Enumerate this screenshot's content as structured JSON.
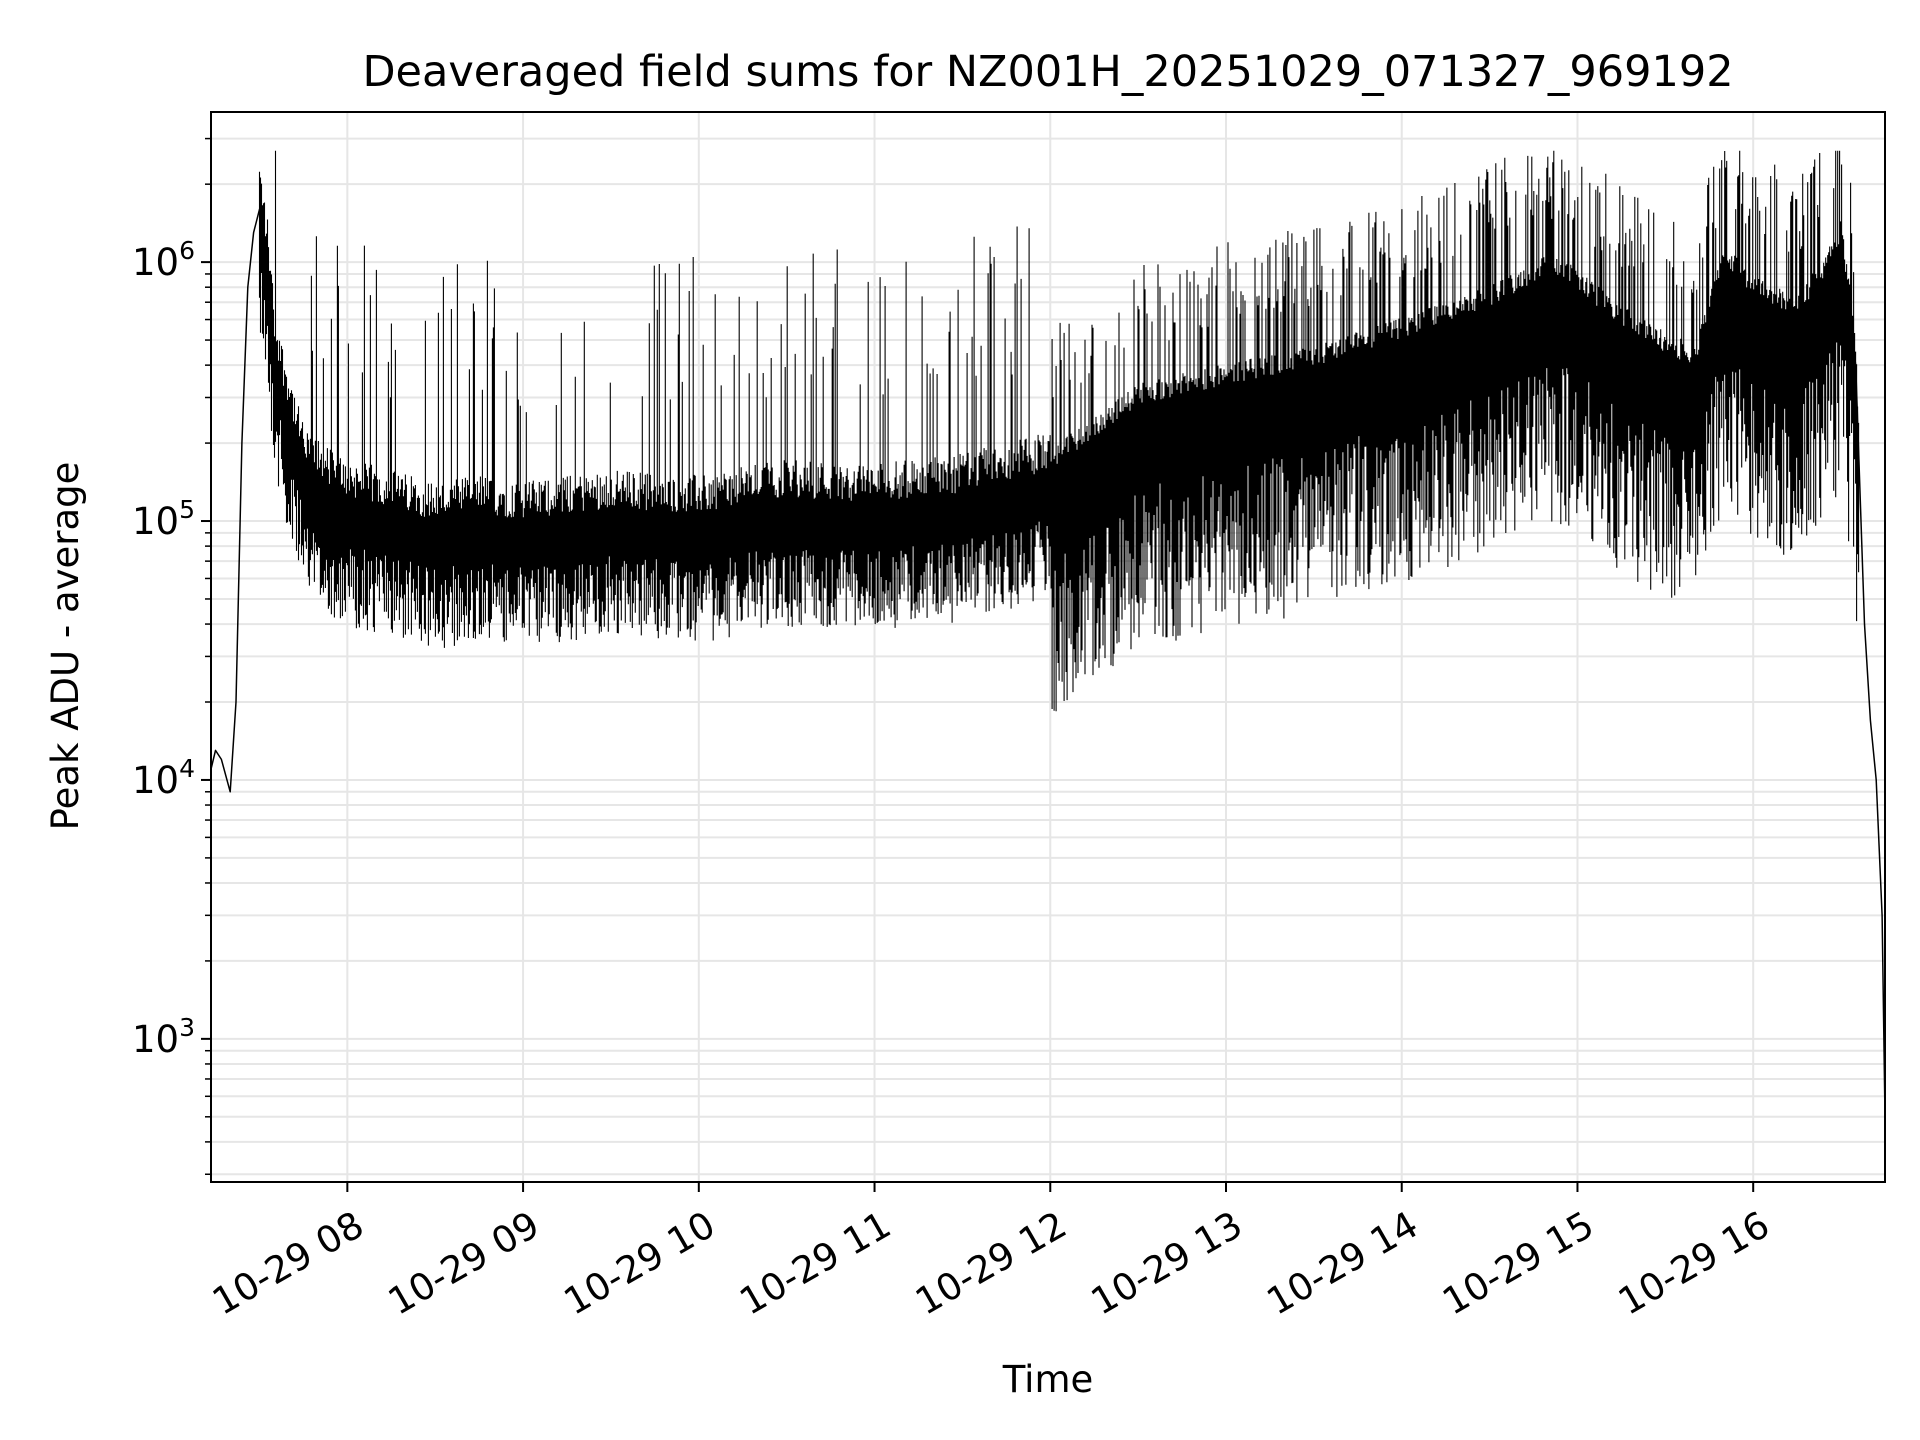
{
  "chart_data": {
    "type": "line",
    "title": "Deaveraged field sums for NZ001H_20251029_071327_969192",
    "xlabel": "Time",
    "ylabel": "Peak ADU - average",
    "yscale": "log",
    "ylim": [
      280,
      3800000
    ],
    "xlim": [
      "2025-10-29 07:13:27",
      "2025-10-29 16:45:00"
    ],
    "grid": true,
    "line_color": "#000000",
    "grid_color": "#e6e6e6",
    "x_ticks": [
      {
        "value": "2025-10-29 08:00",
        "label": "10-29 08"
      },
      {
        "value": "2025-10-29 09:00",
        "label": "10-29 09"
      },
      {
        "value": "2025-10-29 10:00",
        "label": "10-29 10"
      },
      {
        "value": "2025-10-29 11:00",
        "label": "10-29 11"
      },
      {
        "value": "2025-10-29 12:00",
        "label": "10-29 12"
      },
      {
        "value": "2025-10-29 13:00",
        "label": "10-29 13"
      },
      {
        "value": "2025-10-29 14:00",
        "label": "10-29 14"
      },
      {
        "value": "2025-10-29 15:00",
        "label": "10-29 15"
      },
      {
        "value": "2025-10-29 16:00",
        "label": "10-29 16"
      }
    ],
    "y_ticks": [
      {
        "value": 1000,
        "base": "10",
        "exp": "3"
      },
      {
        "value": 10000,
        "base": "10",
        "exp": "4"
      },
      {
        "value": 100000,
        "base": "10",
        "exp": "5"
      },
      {
        "value": 1000000,
        "base": "10",
        "exp": "6"
      }
    ],
    "series": [
      {
        "x": [
          "2025-10-29 07:13:27",
          "2025-10-29 07:15",
          "2025-10-29 07:17",
          "2025-10-29 07:20",
          "2025-10-29 07:22",
          "2025-10-29 07:24",
          "2025-10-29 07:26",
          "2025-10-29 07:28",
          "2025-10-29 07:30",
          "2025-10-29 07:33",
          "2025-10-29 07:35",
          "2025-10-29 07:38",
          "2025-10-29 07:40",
          "2025-10-29 07:43",
          "2025-10-29 07:46",
          "2025-10-29 07:50",
          "2025-10-29 07:55",
          "2025-10-29 08:00",
          "2025-10-29 08:15",
          "2025-10-29 08:30",
          "2025-10-29 08:45",
          "2025-10-29 09:00",
          "2025-10-29 09:30",
          "2025-10-29 10:00",
          "2025-10-29 10:30",
          "2025-10-29 11:00",
          "2025-10-29 11:30",
          "2025-10-29 12:00",
          "2025-10-29 12:30",
          "2025-10-29 13:00",
          "2025-10-29 13:30",
          "2025-10-29 14:00",
          "2025-10-29 14:30",
          "2025-10-29 14:50",
          "2025-10-29 15:00",
          "2025-10-29 15:15",
          "2025-10-29 15:30",
          "2025-10-29 15:40",
          "2025-10-29 15:50",
          "2025-10-29 16:00",
          "2025-10-29 16:15",
          "2025-10-29 16:25",
          "2025-10-29 16:30",
          "2025-10-29 16:35",
          "2025-10-29 16:38",
          "2025-10-29 16:40",
          "2025-10-29 16:42",
          "2025-10-29 16:44",
          "2025-10-29 16:45"
        ],
        "values": [
          11000,
          13000,
          12000,
          9000,
          20000,
          200000,
          800000,
          1300000,
          1600000,
          900000,
          450000,
          300000,
          250000,
          180000,
          140000,
          130000,
          120000,
          110000,
          100000,
          90000,
          95000,
          90000,
          100000,
          95000,
          110000,
          105000,
          115000,
          140000,
          250000,
          300000,
          350000,
          450000,
          600000,
          800000,
          700000,
          500000,
          400000,
          350000,
          900000,
          650000,
          550000,
          800000,
          1100000,
          400000,
          40000,
          17000,
          10000,
          3000,
          500
        ]
      }
    ]
  }
}
